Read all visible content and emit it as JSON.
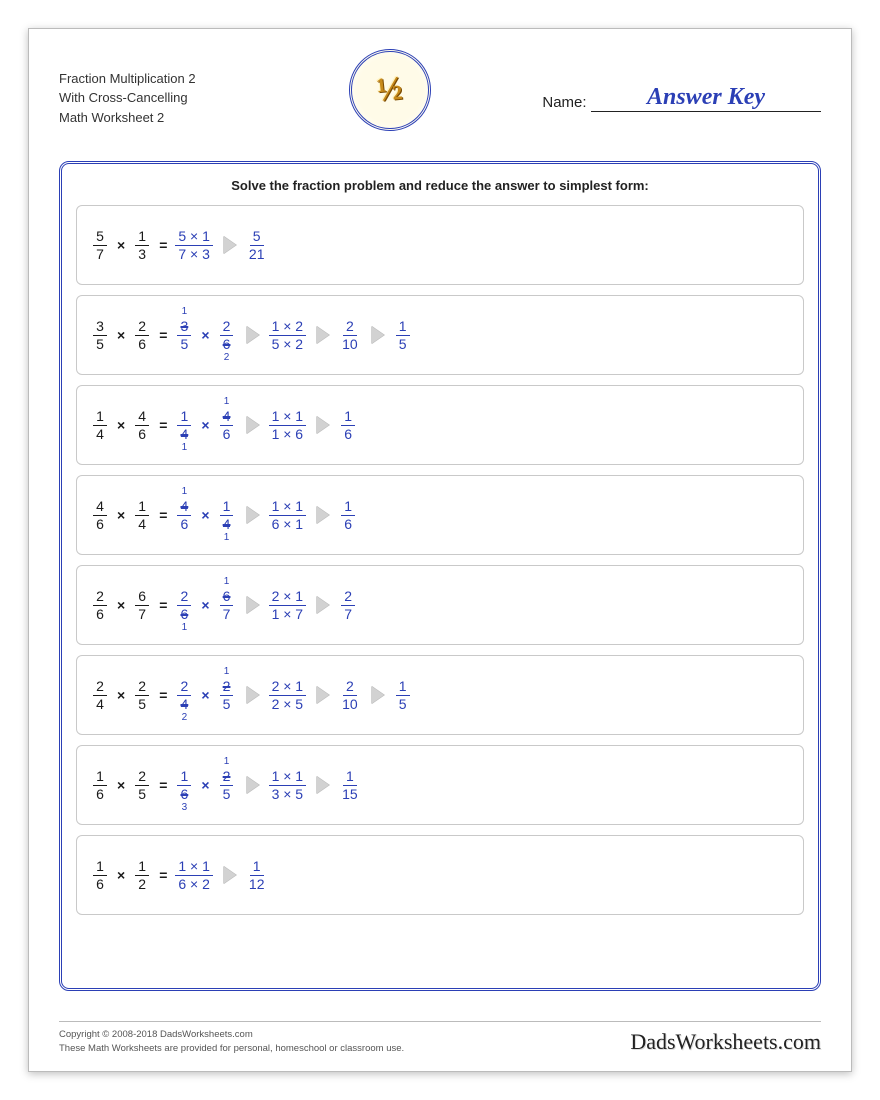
{
  "header": {
    "title_l1": "Fraction Multiplication 2",
    "title_l2": "With Cross-Cancelling",
    "title_l3": "Math Worksheet 2",
    "badge_text": "½",
    "name_label": "Name:",
    "answer_key": "Answer Key"
  },
  "instruction": "Solve the fraction problem and reduce the answer to simplest form:",
  "colors": {
    "question": "#1a1a1a",
    "answer": "#2b3fb5",
    "arrow": "#d2d2d2",
    "border": "#c9c9c9"
  },
  "problems": [
    {
      "lhs": [
        {
          "n": "5",
          "d": "7"
        },
        {
          "n": "1",
          "d": "3"
        }
      ],
      "steps": [
        {
          "type": "frac",
          "n": "5 × 1",
          "d": "7 × 3"
        },
        {
          "type": "arrow"
        },
        {
          "type": "frac",
          "n": "5",
          "d": "21"
        }
      ]
    },
    {
      "lhs": [
        {
          "n": "3",
          "d": "5"
        },
        {
          "n": "2",
          "d": "6"
        }
      ],
      "steps": [
        {
          "type": "frac",
          "n": "3",
          "d": "5",
          "n_strike": true,
          "n_over": "1"
        },
        {
          "type": "op",
          "v": "×"
        },
        {
          "type": "frac",
          "n": "2",
          "d": "6",
          "d_strike": true,
          "d_over": "2"
        },
        {
          "type": "arrow"
        },
        {
          "type": "frac",
          "n": "1 × 2",
          "d": "5 × 2"
        },
        {
          "type": "arrow"
        },
        {
          "type": "frac",
          "n": "2",
          "d": "10"
        },
        {
          "type": "arrow"
        },
        {
          "type": "frac",
          "n": "1",
          "d": "5"
        }
      ]
    },
    {
      "lhs": [
        {
          "n": "1",
          "d": "4"
        },
        {
          "n": "4",
          "d": "6"
        }
      ],
      "steps": [
        {
          "type": "frac",
          "n": "1",
          "d": "4",
          "d_strike": true,
          "d_over": "1"
        },
        {
          "type": "op",
          "v": "×"
        },
        {
          "type": "frac",
          "n": "4",
          "d": "6",
          "n_strike": true,
          "n_over": "1"
        },
        {
          "type": "arrow"
        },
        {
          "type": "frac",
          "n": "1 × 1",
          "d": "1 × 6"
        },
        {
          "type": "arrow"
        },
        {
          "type": "frac",
          "n": "1",
          "d": "6"
        }
      ]
    },
    {
      "lhs": [
        {
          "n": "4",
          "d": "6"
        },
        {
          "n": "1",
          "d": "4"
        }
      ],
      "steps": [
        {
          "type": "frac",
          "n": "4",
          "d": "6",
          "n_strike": true,
          "n_over": "1"
        },
        {
          "type": "op",
          "v": "×"
        },
        {
          "type": "frac",
          "n": "1",
          "d": "4",
          "d_strike": true,
          "d_over": "1"
        },
        {
          "type": "arrow"
        },
        {
          "type": "frac",
          "n": "1 × 1",
          "d": "6 × 1"
        },
        {
          "type": "arrow"
        },
        {
          "type": "frac",
          "n": "1",
          "d": "6"
        }
      ]
    },
    {
      "lhs": [
        {
          "n": "2",
          "d": "6"
        },
        {
          "n": "6",
          "d": "7"
        }
      ],
      "steps": [
        {
          "type": "frac",
          "n": "2",
          "d": "6",
          "d_strike": true,
          "d_over": "1"
        },
        {
          "type": "op",
          "v": "×"
        },
        {
          "type": "frac",
          "n": "6",
          "d": "7",
          "n_strike": true,
          "n_over": "1"
        },
        {
          "type": "arrow"
        },
        {
          "type": "frac",
          "n": "2 × 1",
          "d": "1 × 7"
        },
        {
          "type": "arrow"
        },
        {
          "type": "frac",
          "n": "2",
          "d": "7"
        }
      ]
    },
    {
      "lhs": [
        {
          "n": "2",
          "d": "4"
        },
        {
          "n": "2",
          "d": "5"
        }
      ],
      "steps": [
        {
          "type": "frac",
          "n": "2",
          "d": "4",
          "d_strike": true,
          "d_over": "2"
        },
        {
          "type": "op",
          "v": "×"
        },
        {
          "type": "frac",
          "n": "2",
          "d": "5",
          "n_strike": true,
          "n_over": "1"
        },
        {
          "type": "arrow"
        },
        {
          "type": "frac",
          "n": "2 × 1",
          "d": "2 × 5"
        },
        {
          "type": "arrow"
        },
        {
          "type": "frac",
          "n": "2",
          "d": "10"
        },
        {
          "type": "arrow"
        },
        {
          "type": "frac",
          "n": "1",
          "d": "5"
        }
      ]
    },
    {
      "lhs": [
        {
          "n": "1",
          "d": "6"
        },
        {
          "n": "2",
          "d": "5"
        }
      ],
      "steps": [
        {
          "type": "frac",
          "n": "1",
          "d": "6",
          "d_strike": true,
          "d_over": "3"
        },
        {
          "type": "op",
          "v": "×"
        },
        {
          "type": "frac",
          "n": "2",
          "d": "5",
          "n_strike": true,
          "n_over": "1"
        },
        {
          "type": "arrow"
        },
        {
          "type": "frac",
          "n": "1 × 1",
          "d": "3 × 5"
        },
        {
          "type": "arrow"
        },
        {
          "type": "frac",
          "n": "1",
          "d": "15"
        }
      ]
    },
    {
      "lhs": [
        {
          "n": "1",
          "d": "6"
        },
        {
          "n": "1",
          "d": "2"
        }
      ],
      "steps": [
        {
          "type": "frac",
          "n": "1 × 1",
          "d": "6 × 2"
        },
        {
          "type": "arrow"
        },
        {
          "type": "frac",
          "n": "1",
          "d": "12"
        }
      ]
    }
  ],
  "footer": {
    "copyright": "Copyright © 2008-2018 DadsWorksheets.com",
    "note": "These Math Worksheets are provided for personal, homeschool or classroom use.",
    "brand": "DadsWorksheets.com"
  }
}
